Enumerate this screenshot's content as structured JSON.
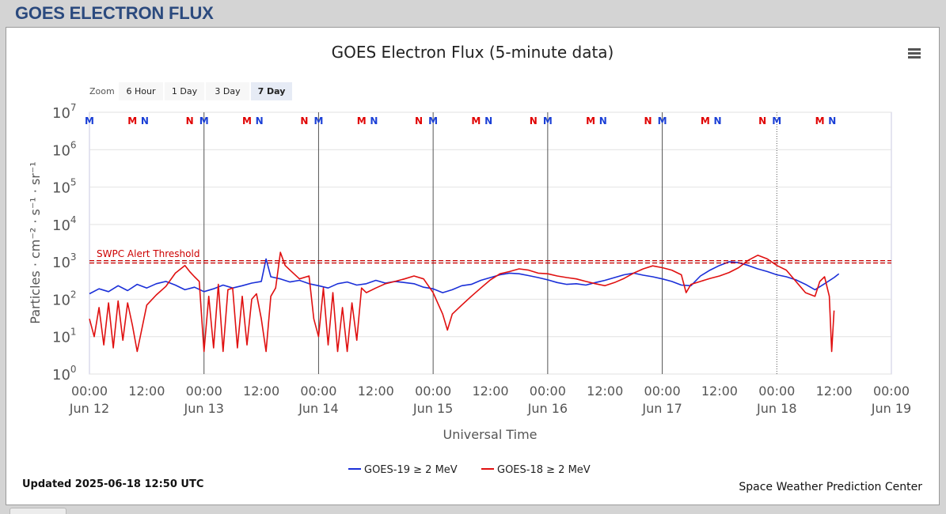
{
  "page": {
    "title": "GOES ELECTRON FLUX"
  },
  "chart_data": {
    "type": "line",
    "title": "GOES Electron Flux (5-minute data)",
    "xlabel": "Universal Time",
    "ylabel": "Particles · cm⁻² · s⁻¹ · sr⁻¹",
    "y_scale": "log",
    "ylim": [
      1,
      10000000
    ],
    "y_ticks": [
      {
        "base": "10",
        "exp": "0"
      },
      {
        "base": "10",
        "exp": "1"
      },
      {
        "base": "10",
        "exp": "2"
      },
      {
        "base": "10",
        "exp": "3"
      },
      {
        "base": "10",
        "exp": "4"
      },
      {
        "base": "10",
        "exp": "5"
      },
      {
        "base": "10",
        "exp": "6"
      },
      {
        "base": "10",
        "exp": "7"
      }
    ],
    "x_range_hours": [
      0,
      168
    ],
    "x_ticks": [
      {
        "hour": 0,
        "time": "00:00",
        "date": "Jun 12"
      },
      {
        "hour": 12,
        "time": "12:00",
        "date": ""
      },
      {
        "hour": 24,
        "time": "00:00",
        "date": "Jun 13"
      },
      {
        "hour": 36,
        "time": "12:00",
        "date": ""
      },
      {
        "hour": 48,
        "time": "00:00",
        "date": "Jun 14"
      },
      {
        "hour": 60,
        "time": "12:00",
        "date": ""
      },
      {
        "hour": 72,
        "time": "00:00",
        "date": "Jun 15"
      },
      {
        "hour": 84,
        "time": "12:00",
        "date": ""
      },
      {
        "hour": 96,
        "time": "00:00",
        "date": "Jun 16"
      },
      {
        "hour": 108,
        "time": "12:00",
        "date": ""
      },
      {
        "hour": 120,
        "time": "00:00",
        "date": "Jun 17"
      },
      {
        "hour": 132,
        "time": "12:00",
        "date": ""
      },
      {
        "hour": 144,
        "time": "00:00",
        "date": "Jun 18"
      },
      {
        "hour": 156,
        "time": "12:00",
        "date": ""
      },
      {
        "hour": 168,
        "time": "00:00",
        "date": "Jun 19"
      }
    ],
    "day_lines": [
      24,
      48,
      72,
      96,
      120,
      144
    ],
    "threshold": {
      "label": "SWPC Alert Threshold",
      "value": 1000,
      "color": "#cc0000"
    },
    "markers": [
      {
        "hour": 0,
        "text": "M",
        "color": "#1a3fd6"
      },
      {
        "hour": 9,
        "text": "M",
        "color": "#e00000"
      },
      {
        "hour": 11.6,
        "text": "N",
        "color": "#1a3fd6"
      },
      {
        "hour": 21,
        "text": "N",
        "color": "#e00000"
      },
      {
        "hour": 24,
        "text": "M",
        "color": "#1a3fd6"
      },
      {
        "hour": 33,
        "text": "M",
        "color": "#e00000"
      },
      {
        "hour": 35.6,
        "text": "N",
        "color": "#1a3fd6"
      },
      {
        "hour": 45,
        "text": "N",
        "color": "#e00000"
      },
      {
        "hour": 48,
        "text": "M",
        "color": "#1a3fd6"
      },
      {
        "hour": 57,
        "text": "M",
        "color": "#e00000"
      },
      {
        "hour": 59.6,
        "text": "N",
        "color": "#1a3fd6"
      },
      {
        "hour": 69,
        "text": "N",
        "color": "#e00000"
      },
      {
        "hour": 72,
        "text": "M",
        "color": "#1a3fd6"
      },
      {
        "hour": 81,
        "text": "M",
        "color": "#e00000"
      },
      {
        "hour": 83.6,
        "text": "N",
        "color": "#1a3fd6"
      },
      {
        "hour": 93,
        "text": "N",
        "color": "#e00000"
      },
      {
        "hour": 96,
        "text": "M",
        "color": "#1a3fd6"
      },
      {
        "hour": 105,
        "text": "M",
        "color": "#e00000"
      },
      {
        "hour": 107.6,
        "text": "N",
        "color": "#1a3fd6"
      },
      {
        "hour": 117,
        "text": "N",
        "color": "#e00000"
      },
      {
        "hour": 120,
        "text": "M",
        "color": "#1a3fd6"
      },
      {
        "hour": 129,
        "text": "M",
        "color": "#e00000"
      },
      {
        "hour": 131.6,
        "text": "N",
        "color": "#1a3fd6"
      },
      {
        "hour": 141,
        "text": "N",
        "color": "#e00000"
      },
      {
        "hour": 144,
        "text": "M",
        "color": "#1a3fd6"
      },
      {
        "hour": 153,
        "text": "M",
        "color": "#e00000"
      },
      {
        "hour": 155.6,
        "text": "N",
        "color": "#1a3fd6"
      }
    ],
    "series": [
      {
        "name": "GOES-19 ≥ 2 MeV",
        "color": "#1a2fd8",
        "points": [
          [
            0,
            140
          ],
          [
            2,
            190
          ],
          [
            4,
            160
          ],
          [
            6,
            230
          ],
          [
            8,
            170
          ],
          [
            10,
            250
          ],
          [
            12,
            200
          ],
          [
            14,
            260
          ],
          [
            16,
            300
          ],
          [
            18,
            240
          ],
          [
            20,
            180
          ],
          [
            22,
            210
          ],
          [
            24,
            160
          ],
          [
            26,
            190
          ],
          [
            28,
            240
          ],
          [
            30,
            200
          ],
          [
            32,
            230
          ],
          [
            34,
            270
          ],
          [
            36,
            300
          ],
          [
            37,
            1200
          ],
          [
            38,
            400
          ],
          [
            40,
            350
          ],
          [
            42,
            290
          ],
          [
            44,
            320
          ],
          [
            46,
            260
          ],
          [
            48,
            230
          ],
          [
            50,
            200
          ],
          [
            52,
            260
          ],
          [
            54,
            290
          ],
          [
            56,
            240
          ],
          [
            58,
            260
          ],
          [
            60,
            320
          ],
          [
            62,
            270
          ],
          [
            64,
            300
          ],
          [
            66,
            280
          ],
          [
            68,
            260
          ],
          [
            70,
            210
          ],
          [
            72,
            190
          ],
          [
            74,
            150
          ],
          [
            76,
            180
          ],
          [
            78,
            230
          ],
          [
            80,
            250
          ],
          [
            82,
            320
          ],
          [
            84,
            380
          ],
          [
            86,
            450
          ],
          [
            88,
            500
          ],
          [
            90,
            480
          ],
          [
            92,
            430
          ],
          [
            94,
            380
          ],
          [
            96,
            330
          ],
          [
            98,
            280
          ],
          [
            100,
            250
          ],
          [
            102,
            260
          ],
          [
            104,
            240
          ],
          [
            106,
            280
          ],
          [
            108,
            320
          ],
          [
            110,
            380
          ],
          [
            112,
            450
          ],
          [
            114,
            500
          ],
          [
            116,
            440
          ],
          [
            118,
            400
          ],
          [
            120,
            350
          ],
          [
            122,
            300
          ],
          [
            124,
            240
          ],
          [
            126,
            230
          ],
          [
            128,
            420
          ],
          [
            130,
            600
          ],
          [
            132,
            800
          ],
          [
            134,
            1000
          ],
          [
            136,
            950
          ],
          [
            138,
            800
          ],
          [
            140,
            650
          ],
          [
            142,
            550
          ],
          [
            144,
            450
          ],
          [
            146,
            400
          ],
          [
            148,
            330
          ],
          [
            150,
            250
          ],
          [
            152,
            180
          ],
          [
            154,
            260
          ],
          [
            156,
            380
          ],
          [
            157,
            480
          ]
        ]
      },
      {
        "name": "GOES-18 ≥ 2 MeV",
        "color": "#e01010",
        "points": [
          [
            0,
            30
          ],
          [
            1,
            10
          ],
          [
            2,
            60
          ],
          [
            3,
            6
          ],
          [
            4,
            80
          ],
          [
            5,
            5
          ],
          [
            6,
            90
          ],
          [
            7,
            8
          ],
          [
            8,
            80
          ],
          [
            9,
            20
          ],
          [
            10,
            4
          ],
          [
            12,
            70
          ],
          [
            14,
            130
          ],
          [
            16,
            220
          ],
          [
            18,
            500
          ],
          [
            20,
            800
          ],
          [
            21,
            550
          ],
          [
            22,
            400
          ],
          [
            23,
            300
          ],
          [
            24,
            4
          ],
          [
            25,
            120
          ],
          [
            26,
            5
          ],
          [
            27,
            250
          ],
          [
            28,
            4
          ],
          [
            29,
            180
          ],
          [
            30,
            200
          ],
          [
            31,
            5
          ],
          [
            32,
            120
          ],
          [
            33,
            6
          ],
          [
            34,
            100
          ],
          [
            35,
            140
          ],
          [
            36,
            30
          ],
          [
            37,
            4
          ],
          [
            38,
            120
          ],
          [
            39,
            200
          ],
          [
            40,
            1800
          ],
          [
            41,
            800
          ],
          [
            42,
            600
          ],
          [
            44,
            350
          ],
          [
            46,
            420
          ],
          [
            47,
            30
          ],
          [
            48,
            10
          ],
          [
            49,
            200
          ],
          [
            50,
            6
          ],
          [
            51,
            150
          ],
          [
            52,
            4
          ],
          [
            53,
            60
          ],
          [
            54,
            4
          ],
          [
            55,
            80
          ],
          [
            56,
            8
          ],
          [
            57,
            200
          ],
          [
            58,
            150
          ],
          [
            60,
            200
          ],
          [
            62,
            260
          ],
          [
            64,
            300
          ],
          [
            66,
            350
          ],
          [
            68,
            420
          ],
          [
            70,
            350
          ],
          [
            72,
            150
          ],
          [
            74,
            40
          ],
          [
            75,
            15
          ],
          [
            76,
            40
          ],
          [
            78,
            70
          ],
          [
            80,
            120
          ],
          [
            82,
            200
          ],
          [
            84,
            330
          ],
          [
            86,
            480
          ],
          [
            88,
            550
          ],
          [
            90,
            650
          ],
          [
            92,
            600
          ],
          [
            94,
            500
          ],
          [
            96,
            480
          ],
          [
            98,
            420
          ],
          [
            100,
            380
          ],
          [
            102,
            350
          ],
          [
            104,
            300
          ],
          [
            106,
            260
          ],
          [
            108,
            230
          ],
          [
            110,
            280
          ],
          [
            112,
            360
          ],
          [
            114,
            500
          ],
          [
            116,
            650
          ],
          [
            118,
            780
          ],
          [
            120,
            700
          ],
          [
            122,
            600
          ],
          [
            124,
            450
          ],
          [
            125,
            150
          ],
          [
            126,
            250
          ],
          [
            128,
            300
          ],
          [
            130,
            360
          ],
          [
            132,
            420
          ],
          [
            134,
            520
          ],
          [
            136,
            700
          ],
          [
            138,
            1100
          ],
          [
            140,
            1500
          ],
          [
            142,
            1200
          ],
          [
            144,
            800
          ],
          [
            146,
            600
          ],
          [
            148,
            300
          ],
          [
            150,
            150
          ],
          [
            152,
            120
          ],
          [
            153,
            300
          ],
          [
            154,
            400
          ],
          [
            155,
            120
          ],
          [
            155.5,
            4
          ],
          [
            156,
            50
          ]
        ]
      }
    ],
    "legend_position": "bottom-center"
  },
  "zoom": {
    "label": "Zoom",
    "buttons": [
      {
        "label": "6 Hour",
        "selected": false
      },
      {
        "label": "1 Day",
        "selected": false
      },
      {
        "label": "3 Day",
        "selected": false
      },
      {
        "label": "7 Day",
        "selected": true
      }
    ]
  },
  "footer": {
    "updated": "Updated 2025-06-18 12:50 UTC",
    "credit": "Space Weather Prediction Center"
  }
}
